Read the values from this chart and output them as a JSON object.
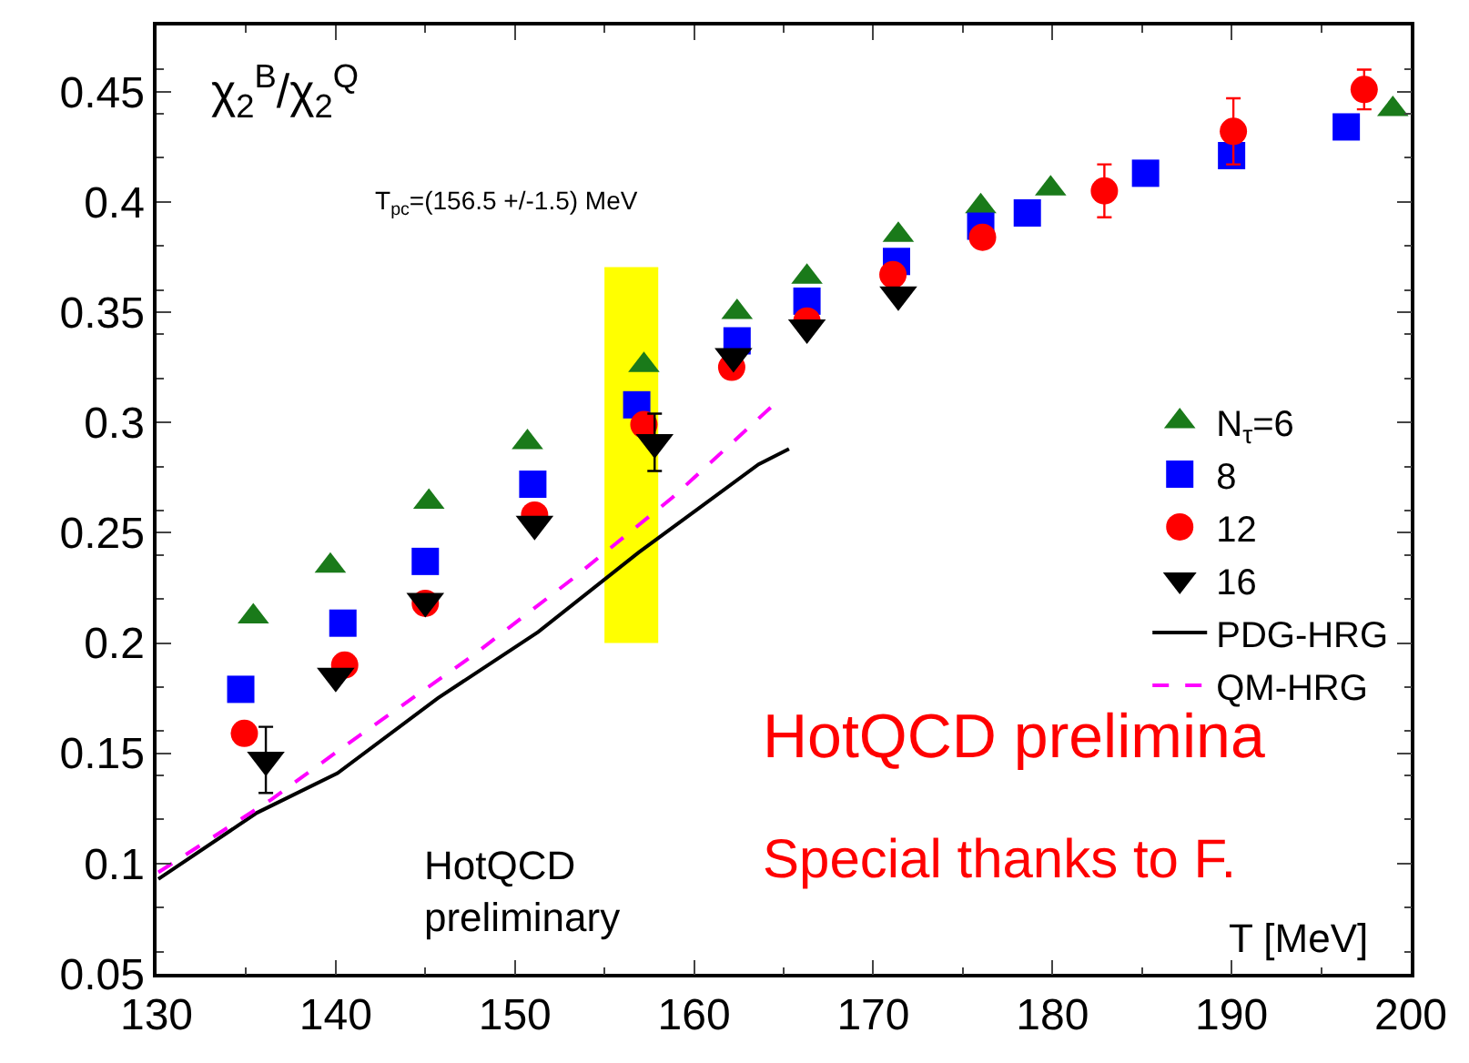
{
  "chart_data": {
    "type": "scatter",
    "xlabel": "T [MeV]",
    "ylabel": "χ$_{2}$$^{B}$/χ$_{2}$$^{Q}$",
    "xlim": [
      130,
      200
    ],
    "ylim": [
      0.05,
      0.48
    ],
    "xticks": [
      130,
      140,
      150,
      160,
      170,
      180,
      190,
      200
    ],
    "yticks": [
      0.05,
      0.1,
      0.15,
      0.2,
      0.25,
      0.3,
      0.35,
      0.4,
      0.45
    ],
    "legend": "right",
    "series": [
      {
        "type": "bar",
        "x": [
          156.5
        ],
        "base": [
          0.2
        ],
        "values": [
          0.17
        ],
        "xerrors": [
          1.5
        ],
        "color": "#ffff00"
      },
      {
        "name": "N$_{τ}$=6",
        "marker": "triangle",
        "color": "#1a7a1a",
        "x": [
          135.4,
          139.7,
          145.2,
          150.7,
          157.2,
          162.4,
          166.3,
          171.4,
          176.0,
          179.9,
          199.0
        ],
        "values": [
          0.212,
          0.235,
          0.264,
          0.291,
          0.326,
          0.35,
          0.366,
          0.385,
          0.398,
          0.406,
          0.442
        ]
      },
      {
        "name": "8",
        "marker": "square",
        "color": "#0000ff",
        "x": [
          134.7,
          140.4,
          145.0,
          151.0,
          156.8,
          162.4,
          166.3,
          171.3,
          176.0,
          178.6,
          185.2,
          190.0,
          196.4
        ],
        "values": [
          0.179,
          0.209,
          0.237,
          0.272,
          0.308,
          0.337,
          0.355,
          0.373,
          0.389,
          0.395,
          0.413,
          0.421,
          0.434
        ]
      },
      {
        "name": "12",
        "marker": "circle",
        "color": "#ff0000",
        "x": [
          134.9,
          140.5,
          145.0,
          151.1,
          157.2,
          162.1,
          166.3,
          171.1,
          176.1,
          182.9,
          190.1,
          197.4
        ],
        "values": [
          0.159,
          0.19,
          0.218,
          0.258,
          0.299,
          0.325,
          0.346,
          0.367,
          0.384,
          0.405,
          0.432,
          0.451
        ],
        "errors": [
          null,
          null,
          null,
          null,
          null,
          null,
          null,
          null,
          null,
          0.012,
          0.015,
          0.009
        ]
      },
      {
        "name": "16",
        "marker": "triangle-down",
        "color": "#000000",
        "x": [
          136.1,
          140.0,
          145.0,
          151.1,
          157.8,
          162.2,
          166.3,
          171.4
        ],
        "values": [
          0.147,
          0.185,
          0.219,
          0.254,
          0.291,
          0.33,
          0.343,
          0.358
        ],
        "errors": [
          0.015,
          null,
          null,
          null,
          0.013,
          null,
          null,
          null
        ]
      },
      {
        "name": "PDG-HRG",
        "type": "line",
        "line_style": "solid",
        "color": "#000000",
        "x": [
          130.1,
          135.6,
          140.1,
          145.7,
          151.3,
          156.9,
          163.6,
          165.3
        ],
        "values": [
          0.093,
          0.123,
          0.141,
          0.175,
          0.205,
          0.241,
          0.281,
          0.288
        ]
      },
      {
        "name": "QM-HRG",
        "type": "line",
        "line_style": "dashed",
        "color": "#ff00ff",
        "x": [
          130.1,
          136.4,
          140.8,
          147.6,
          153.2,
          158.8,
          164.3
        ],
        "values": [
          0.096,
          0.129,
          0.155,
          0.194,
          0.229,
          0.266,
          0.307
        ]
      }
    ],
    "annotations": [
      "T$_{pc}$=(156.5 +/-1.5) MeV",
      "HotQCD\npreliminary",
      "HotQCD prelimina",
      "Special thanks to F."
    ]
  }
}
